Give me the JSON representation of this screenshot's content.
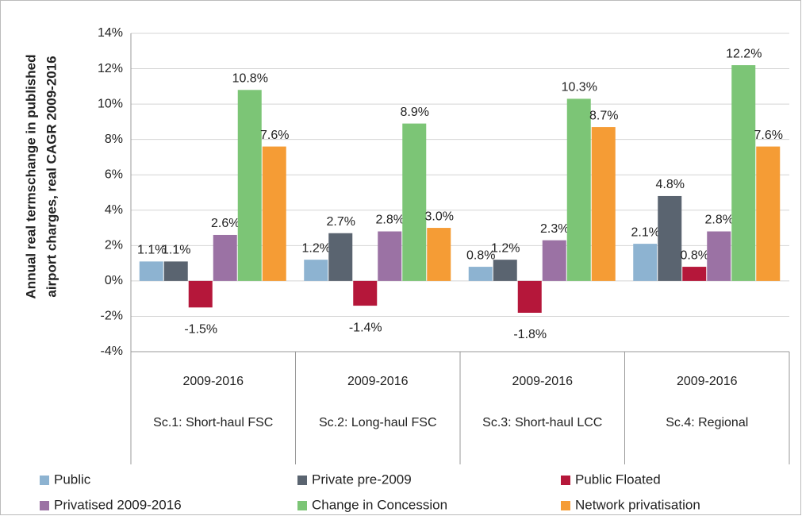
{
  "chart_data": {
    "type": "bar",
    "ylabel": [
      "Annual real termschange in published",
      "airport charges, real CAGR 2009-2016"
    ],
    "periods": [
      "2009-2016",
      "2009-2016",
      "2009-2016",
      "2009-2016"
    ],
    "categories": [
      "Sc.1: Short-haul FSC",
      "Sc.2: Long-haul FSC",
      "Sc.3: Short-haul LCC",
      "Sc.4: Regional"
    ],
    "series": [
      {
        "name": "Public",
        "color": "#8db3d1",
        "values": [
          1.1,
          1.2,
          0.8,
          2.1
        ],
        "value_labels": [
          "1.1%",
          "1.2%",
          "0.8%",
          "2.1%"
        ]
      },
      {
        "name": "Private pre-2009",
        "color": "#5a6470",
        "values": [
          1.1,
          2.7,
          1.2,
          4.8
        ],
        "value_labels": [
          "1.1%",
          "2.7%",
          "1.2%",
          "4.8%"
        ]
      },
      {
        "name": "Public Floated",
        "color": "#b5173a",
        "values": [
          -1.5,
          -1.4,
          -1.8,
          0.8
        ],
        "value_labels": [
          "-1.5%",
          "-1.4%",
          "-1.8%",
          "0.8%"
        ]
      },
      {
        "name": "Privatised 2009-2016",
        "color": "#9b72a4",
        "values": [
          2.6,
          2.8,
          2.3,
          2.8
        ],
        "value_labels": [
          "2.6%",
          "2.8%",
          "2.3%",
          "2.8%"
        ]
      },
      {
        "name": "Change in Concession",
        "color": "#7cc576",
        "values": [
          10.8,
          8.9,
          10.3,
          12.2
        ],
        "value_labels": [
          "10.8%",
          "8.9%",
          "10.3%",
          "12.2%"
        ]
      },
      {
        "name": "Network privatisation",
        "color": "#f59c35",
        "values": [
          7.6,
          3.0,
          8.7,
          7.6
        ],
        "value_labels": [
          "7.6%",
          "3.0%",
          "8.7%",
          "7.6%"
        ]
      }
    ],
    "ylim": [
      -4,
      14
    ],
    "yticks": [
      {
        "value": -4,
        "label": "-4%"
      },
      {
        "value": -2,
        "label": "-2%"
      },
      {
        "value": 0,
        "label": "0%"
      },
      {
        "value": 2,
        "label": "2%"
      },
      {
        "value": 4,
        "label": "4%"
      },
      {
        "value": 6,
        "label": "6%"
      },
      {
        "value": 8,
        "label": "8%"
      },
      {
        "value": 10,
        "label": "10%"
      },
      {
        "value": 12,
        "label": "12%"
      },
      {
        "value": 14,
        "label": "14%"
      }
    ],
    "grid": true
  }
}
